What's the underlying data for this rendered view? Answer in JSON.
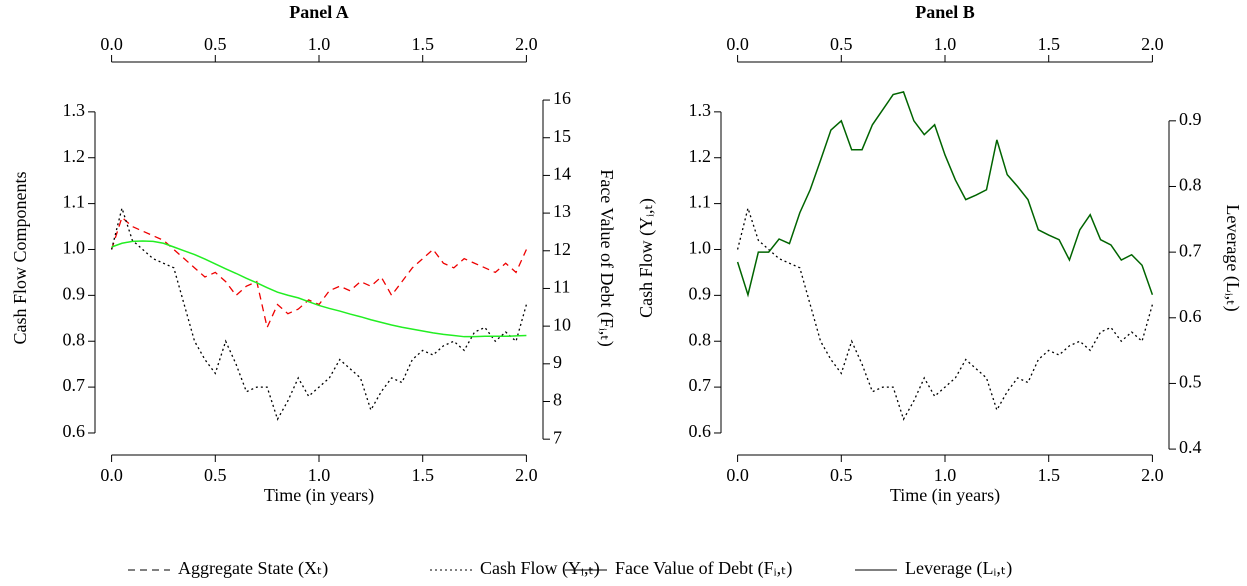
{
  "chart_data": [
    {
      "type": "line",
      "title": "Panel A",
      "xlabel": "Time (in years)",
      "ylabel": "Cash Flow Components",
      "y2label": "Face Value of Debt (Fᵢ,ₜ)",
      "x": [
        0,
        0.05,
        0.1,
        0.15,
        0.2,
        0.25,
        0.3,
        0.35,
        0.4,
        0.45,
        0.5,
        0.55,
        0.6,
        0.65,
        0.7,
        0.75,
        0.8,
        0.85,
        0.9,
        0.95,
        1,
        1.05,
        1.1,
        1.15,
        1.2,
        1.25,
        1.3,
        1.35,
        1.4,
        1.45,
        1.5,
        1.55,
        1.6,
        1.65,
        1.7,
        1.75,
        1.8,
        1.85,
        1.9,
        1.95,
        2
      ],
      "series": [
        {
          "name": "Aggregate State (Xₜ)",
          "color": "#ee0000",
          "linestyle": "dashed",
          "values": [
            1.0,
            1.07,
            1.05,
            1.04,
            1.03,
            1.02,
            1.0,
            0.98,
            0.96,
            0.94,
            0.95,
            0.93,
            0.9,
            0.92,
            0.93,
            0.83,
            0.88,
            0.86,
            0.87,
            0.89,
            0.88,
            0.91,
            0.92,
            0.91,
            0.93,
            0.92,
            0.94,
            0.9,
            0.93,
            0.96,
            0.98,
            1.0,
            0.97,
            0.96,
            0.98,
            0.97,
            0.96,
            0.95,
            0.97,
            0.95,
            1.0
          ]
        },
        {
          "name": "Cash Flow (Yᵢ,ₜ)",
          "color": "#000000",
          "linestyle": "dotted",
          "values": [
            1.0,
            1.09,
            1.02,
            1.0,
            0.98,
            0.97,
            0.96,
            0.88,
            0.8,
            0.76,
            0.73,
            0.8,
            0.75,
            0.69,
            0.7,
            0.7,
            0.63,
            0.67,
            0.72,
            0.68,
            0.7,
            0.72,
            0.76,
            0.74,
            0.72,
            0.65,
            0.69,
            0.72,
            0.71,
            0.76,
            0.78,
            0.77,
            0.79,
            0.8,
            0.78,
            0.82,
            0.83,
            0.8,
            0.82,
            0.8,
            0.88
          ]
        },
        {
          "name": "Face Value of Debt (Fᵢ,ₜ)",
          "color": "#22ee22",
          "linestyle": "solid",
          "axis": "y2",
          "values": [
            12.1,
            12.2,
            12.25,
            12.26,
            12.25,
            12.2,
            12.1,
            12.0,
            11.9,
            11.78,
            11.65,
            11.52,
            11.4,
            11.27,
            11.15,
            11.02,
            10.9,
            10.82,
            10.75,
            10.65,
            10.55,
            10.47,
            10.4,
            10.32,
            10.25,
            10.17,
            10.1,
            10.03,
            9.97,
            9.92,
            9.87,
            9.82,
            9.78,
            9.75,
            9.72,
            9.72,
            9.73,
            9.73,
            9.73,
            9.74,
            9.75
          ]
        }
      ],
      "xlim": [
        -0.08,
        2.08
      ],
      "xticks": [
        {
          "value": 0,
          "label": "0.0"
        },
        0.5,
        {
          "value": 1,
          "label": "1.0"
        },
        1.5,
        {
          "value": 2,
          "label": "2.0"
        }
      ],
      "ylim": [
        0.552,
        1.352
      ],
      "yticks": [
        0.6,
        0.7,
        0.8,
        0.9,
        {
          "value": 1,
          "label": "1.0"
        },
        1.1,
        1.2,
        1.3
      ],
      "y2lim": [
        6.58,
        16.32
      ],
      "y2ticks": [
        7,
        8,
        9,
        10,
        11,
        12,
        13,
        14,
        15,
        16
      ]
    },
    {
      "type": "line",
      "title": "Panel B",
      "xlabel": "Time (in years)",
      "ylabel": "Cash Flow (Yᵢ,ₜ)",
      "y2label": "Leverage (Lᵢ,ₜ)",
      "x": [
        0,
        0.05,
        0.1,
        0.15,
        0.2,
        0.25,
        0.3,
        0.35,
        0.4,
        0.45,
        0.5,
        0.55,
        0.6,
        0.65,
        0.7,
        0.75,
        0.8,
        0.85,
        0.9,
        0.95,
        1,
        1.05,
        1.1,
        1.15,
        1.2,
        1.25,
        1.3,
        1.35,
        1.4,
        1.45,
        1.5,
        1.55,
        1.6,
        1.65,
        1.7,
        1.75,
        1.8,
        1.85,
        1.9,
        1.95,
        2
      ],
      "series": [
        {
          "name": "Cash Flow (Yᵢ,ₜ)",
          "color": "#000000",
          "linestyle": "dotted",
          "values": [
            1.0,
            1.09,
            1.02,
            1.0,
            0.98,
            0.97,
            0.96,
            0.88,
            0.8,
            0.76,
            0.73,
            0.8,
            0.75,
            0.69,
            0.7,
            0.7,
            0.63,
            0.67,
            0.72,
            0.68,
            0.7,
            0.72,
            0.76,
            0.74,
            0.72,
            0.65,
            0.69,
            0.72,
            0.71,
            0.76,
            0.78,
            0.77,
            0.79,
            0.8,
            0.78,
            0.82,
            0.83,
            0.8,
            0.82,
            0.8,
            0.88
          ]
        },
        {
          "name": "Leverage (Lᵢ,ₜ)",
          "color": "#006400",
          "linestyle": "solid",
          "axis": "y2",
          "values": [
            0.685,
            0.635,
            0.7,
            0.7,
            0.72,
            0.713,
            0.76,
            0.795,
            0.84,
            0.886,
            0.9,
            0.856,
            0.856,
            0.894,
            0.917,
            0.94,
            0.944,
            0.9,
            0.879,
            0.894,
            0.848,
            0.81,
            0.78,
            0.787,
            0.795,
            0.871,
            0.818,
            0.8,
            0.78,
            0.734,
            0.726,
            0.719,
            0.688,
            0.734,
            0.757,
            0.719,
            0.711,
            0.688,
            0.696,
            0.68,
            0.635
          ]
        }
      ],
      "xlim": [
        -0.08,
        2.08
      ],
      "xticks": [
        {
          "value": 0,
          "label": "0.0"
        },
        0.5,
        {
          "value": 1,
          "label": "1.0"
        },
        1.5,
        {
          "value": 2,
          "label": "2.0"
        }
      ],
      "ylim": [
        0.552,
        1.352
      ],
      "yticks": [
        0.6,
        0.7,
        0.8,
        0.9,
        {
          "value": 1,
          "label": "1.0"
        },
        1.1,
        1.2,
        1.3
      ],
      "y2lim": [
        0.391,
        0.95
      ],
      "y2ticks": [
        0.4,
        0.5,
        0.6,
        0.7,
        0.8,
        0.9
      ]
    }
  ]
}
